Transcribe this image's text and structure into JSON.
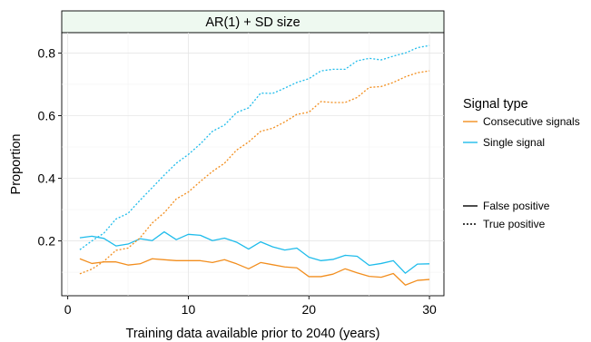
{
  "chart_data": {
    "type": "line",
    "title": "AR(1) + SD size",
    "xlabel": "Training data available prior to 2040 (years)",
    "ylabel": "Proportion",
    "xlim": [
      -0.5,
      31.2
    ],
    "ylim": [
      0.025,
      0.865
    ],
    "x_ticks": [
      0,
      10,
      20,
      30
    ],
    "x_tick_labels": [
      "0",
      "10",
      "20",
      "30"
    ],
    "y_ticks": [
      0.2,
      0.4,
      0.6,
      0.8
    ],
    "y_tick_labels": [
      "0.2",
      "0.4",
      "0.6",
      "0.8"
    ],
    "grid": true,
    "legend": {
      "placement": "right",
      "color_title": "Signal type",
      "color_entries": [
        {
          "label": "Consecutive signals",
          "color": "#F28E1E"
        },
        {
          "label": "Single signal",
          "color": "#1FBCEB"
        }
      ],
      "linetype_entries": [
        {
          "label": "False positive",
          "dash": "solid"
        },
        {
          "label": "True positive",
          "dash": "dotted"
        }
      ]
    },
    "x": [
      1,
      2,
      3,
      4,
      5,
      6,
      7,
      8,
      9,
      10,
      11,
      12,
      13,
      14,
      15,
      16,
      17,
      18,
      19,
      20,
      21,
      22,
      23,
      24,
      25,
      26,
      27,
      28,
      29,
      30
    ],
    "series": [
      {
        "name": "Consecutive signals",
        "linetype": "False positive",
        "color": "#F28E1E",
        "values": [
          0.143,
          0.128,
          0.133,
          0.133,
          0.123,
          0.127,
          0.143,
          0.14,
          0.137,
          0.137,
          0.137,
          0.131,
          0.14,
          0.127,
          0.111,
          0.131,
          0.124,
          0.117,
          0.114,
          0.086,
          0.086,
          0.094,
          0.111,
          0.098,
          0.087,
          0.084,
          0.096,
          0.059,
          0.074,
          0.077
        ]
      },
      {
        "name": "Single signal",
        "linetype": "False positive",
        "color": "#1FBCEB",
        "values": [
          0.21,
          0.215,
          0.208,
          0.184,
          0.19,
          0.207,
          0.201,
          0.229,
          0.204,
          0.221,
          0.218,
          0.201,
          0.209,
          0.196,
          0.174,
          0.197,
          0.181,
          0.171,
          0.177,
          0.148,
          0.137,
          0.141,
          0.154,
          0.151,
          0.122,
          0.128,
          0.137,
          0.097,
          0.126,
          0.127
        ]
      },
      {
        "name": "Consecutive signals",
        "linetype": "True positive",
        "color": "#F28E1E",
        "values": [
          0.095,
          0.11,
          0.135,
          0.17,
          0.177,
          0.21,
          0.257,
          0.29,
          0.334,
          0.356,
          0.39,
          0.422,
          0.448,
          0.49,
          0.516,
          0.55,
          0.56,
          0.58,
          0.604,
          0.611,
          0.645,
          0.642,
          0.642,
          0.658,
          0.69,
          0.693,
          0.706,
          0.724,
          0.737,
          0.743
        ]
      },
      {
        "name": "Single signal",
        "linetype": "True positive",
        "color": "#1FBCEB",
        "values": [
          0.172,
          0.2,
          0.225,
          0.27,
          0.288,
          0.33,
          0.37,
          0.41,
          0.448,
          0.476,
          0.51,
          0.55,
          0.57,
          0.61,
          0.625,
          0.672,
          0.671,
          0.688,
          0.706,
          0.718,
          0.743,
          0.748,
          0.748,
          0.775,
          0.783,
          0.778,
          0.79,
          0.8,
          0.817,
          0.824
        ]
      }
    ]
  }
}
